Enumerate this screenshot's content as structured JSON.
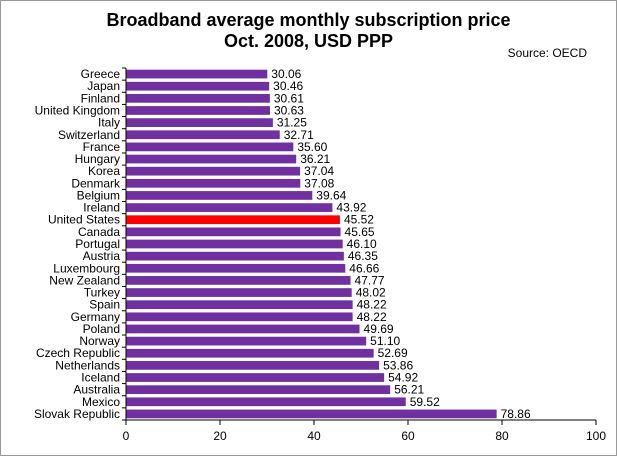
{
  "title_line1": "Broadband average monthly subscription price",
  "title_line2": "Oct. 2008, USD PPP",
  "source": "Source: OECD",
  "colors": {
    "bar": "#7030a0",
    "highlight": "#ff0000",
    "axis": "#000000"
  },
  "chart_data": {
    "type": "bar",
    "orientation": "horizontal",
    "title": "Broadband average monthly subscription price Oct. 2008, USD PPP",
    "xlim": [
      0,
      100
    ],
    "x_ticks": [
      0,
      20,
      40,
      60,
      80,
      100
    ],
    "grid": false,
    "highlight": "United States",
    "categories": [
      "Greece",
      "Japan",
      "Finland",
      "United Kingdom",
      "Italy",
      "Switzerland",
      "France",
      "Hungary",
      "Korea",
      "Denmark",
      "Belgium",
      "Ireland",
      "United States",
      "Canada",
      "Portugal",
      "Austria",
      "Luxembourg",
      "New Zealand",
      "Turkey",
      "Spain",
      "Germany",
      "Poland",
      "Norway",
      "Czech Republic",
      "Netherlands",
      "Iceland",
      "Australia",
      "Mexico",
      "Slovak Republic"
    ],
    "values": [
      30.06,
      30.46,
      30.61,
      30.63,
      31.25,
      32.71,
      35.6,
      36.21,
      37.04,
      37.08,
      39.64,
      43.92,
      45.52,
      45.65,
      46.1,
      46.35,
      46.66,
      47.77,
      48.02,
      48.22,
      48.22,
      49.69,
      51.1,
      52.69,
      53.86,
      54.92,
      56.21,
      59.52,
      78.86
    ],
    "value_labels": [
      "30.06",
      "30.46",
      "30.61",
      "30.63",
      "31.25",
      "32.71",
      "35.60",
      "36.21",
      "37.04",
      "37.08",
      "39.64",
      "43.92",
      "45.52",
      "45.65",
      "46.10",
      "46.35",
      "46.66",
      "47.77",
      "48.02",
      "48.22",
      "48.22",
      "49.69",
      "51.10",
      "52.69",
      "53.86",
      "54.92",
      "56.21",
      "59.52",
      "78.86"
    ]
  }
}
